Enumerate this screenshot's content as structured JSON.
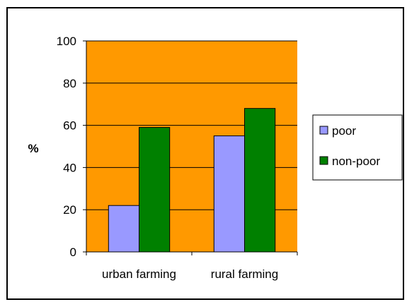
{
  "chart_data": {
    "type": "bar",
    "title": "",
    "xlabel": "",
    "ylabel": "%",
    "categories": [
      "urban farming",
      "rural farming"
    ],
    "series": [
      {
        "name": "poor",
        "values": [
          22,
          55
        ]
      },
      {
        "name": "non-poor",
        "values": [
          59,
          68
        ]
      }
    ],
    "ylim": [
      0,
      100
    ],
    "yticks": [
      "0",
      "20",
      "40",
      "60",
      "80",
      "100"
    ],
    "grid": true,
    "legend_position": "right",
    "colors": {
      "plot_background": "#FF9900",
      "series": [
        "#9999FF",
        "#008000"
      ],
      "gridlines": "#000000"
    }
  }
}
